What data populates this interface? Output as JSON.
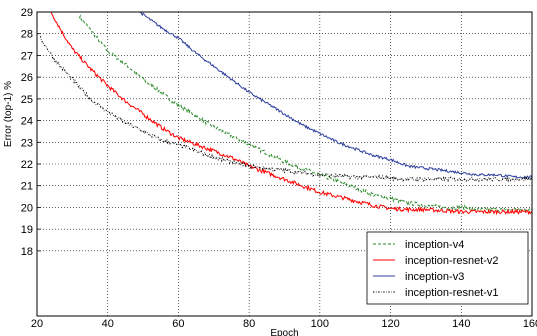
{
  "chart_data": {
    "type": "line",
    "title": "",
    "xlabel": "Epoch",
    "ylabel": "Error (top-1) %",
    "xlim": [
      20,
      160
    ],
    "ylim": [
      15,
      29
    ],
    "xticks": [
      "20",
      "40",
      "60",
      "80",
      "100",
      "120",
      "140",
      "160"
    ],
    "yticks": [
      "18",
      "19",
      "20",
      "21",
      "22",
      "23",
      "24",
      "25",
      "26",
      "27",
      "28",
      "29"
    ],
    "grid": true,
    "legend_position": "bottom-right",
    "series": [
      {
        "name": "inception-v4",
        "color": "#2a8a2a",
        "dash": "dashed",
        "x": [
          32,
          36,
          40,
          45,
          50,
          55,
          60,
          65,
          70,
          75,
          80,
          85,
          90,
          95,
          100,
          105,
          110,
          115,
          120,
          125,
          130,
          135,
          140,
          145,
          150,
          155,
          160
        ],
        "y": [
          28.8,
          28.0,
          27.2,
          26.6,
          25.9,
          25.3,
          24.7,
          24.2,
          23.7,
          23.3,
          22.9,
          22.5,
          22.1,
          21.8,
          21.5,
          21.2,
          20.9,
          20.6,
          20.4,
          20.2,
          20.1,
          20.0,
          20.0,
          19.9,
          19.9,
          19.9,
          19.9
        ]
      },
      {
        "name": "inception-resnet-v2",
        "color": "#ff0000",
        "dash": "solid",
        "x": [
          24,
          27,
          30,
          35,
          40,
          45,
          50,
          55,
          60,
          65,
          70,
          75,
          80,
          85,
          90,
          95,
          100,
          105,
          110,
          115,
          120,
          125,
          130,
          135,
          140,
          145,
          150,
          155,
          160
        ],
        "y": [
          29.0,
          28.1,
          27.3,
          26.4,
          25.6,
          24.9,
          24.3,
          23.7,
          23.2,
          22.9,
          22.6,
          22.3,
          21.9,
          21.6,
          21.3,
          21.0,
          20.7,
          20.5,
          20.3,
          20.1,
          19.95,
          19.9,
          19.9,
          19.85,
          19.8,
          19.8,
          19.8,
          19.8,
          19.8
        ]
      },
      {
        "name": "inception-v3",
        "color": "#2e3f9e",
        "dash": "solid",
        "x": [
          49,
          55,
          60,
          65,
          70,
          75,
          80,
          85,
          90,
          95,
          100,
          105,
          110,
          115,
          120,
          125,
          130,
          135,
          140,
          145,
          150,
          155,
          160
        ],
        "y": [
          29.0,
          28.3,
          27.8,
          27.1,
          26.5,
          25.9,
          25.3,
          24.8,
          24.3,
          23.8,
          23.4,
          23.0,
          22.7,
          22.4,
          22.2,
          21.9,
          21.8,
          21.7,
          21.6,
          21.5,
          21.5,
          21.4,
          21.4
        ]
      },
      {
        "name": "inception-resnet-v1",
        "color": "#000000",
        "dash": "dashdot",
        "x": [
          21,
          25,
          30,
          35,
          40,
          45,
          50,
          55,
          60,
          65,
          70,
          75,
          80,
          85,
          90,
          95,
          100,
          105,
          110,
          115,
          120,
          125,
          130,
          135,
          140,
          145,
          150,
          155,
          160
        ],
        "y": [
          27.8,
          26.8,
          25.9,
          25.0,
          24.4,
          23.9,
          23.5,
          23.1,
          22.9,
          22.6,
          22.3,
          22.1,
          21.9,
          21.8,
          21.7,
          21.6,
          21.5,
          21.45,
          21.4,
          21.4,
          21.35,
          21.3,
          21.3,
          21.3,
          21.3,
          21.3,
          21.3,
          21.3,
          21.3
        ]
      }
    ]
  }
}
